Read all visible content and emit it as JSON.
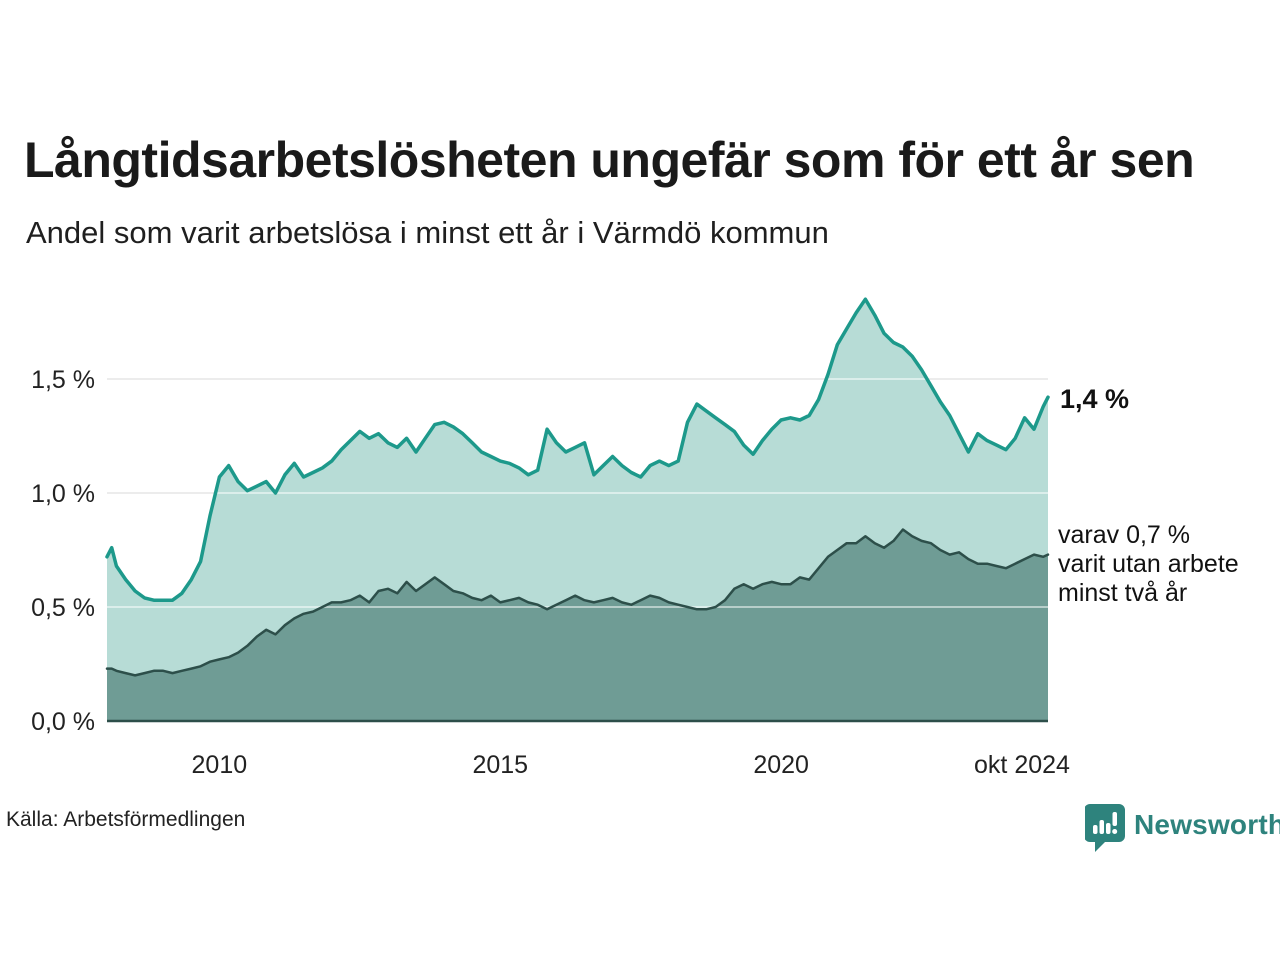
{
  "colors": {
    "accent_line": "#1d998b",
    "accent_fill": "#b7dcd6",
    "dark_line": "#2d4f4a",
    "dark_fill": "#6f9c95",
    "grid": "#d9d9d9",
    "grid_over_fill": "rgba(255,255,255,0.5)",
    "axis_text": "#222222",
    "logo_teal": "#2e837d"
  },
  "logo": {
    "text": "Newsworthy",
    "icon": "bar-chart-speech-bubble"
  },
  "chart_data": {
    "type": "area",
    "title": "Långtidsarbetslösheten ungefär som för ett år sen",
    "subtitle": "Andel som varit arbetslösa i minst ett år i Värmdö kommun",
    "source": "Källa: Arbetsförmedlingen",
    "unit": "%",
    "grid": true,
    "legend_position": "none",
    "ylim": [
      0,
      1.9
    ],
    "y_ticks": [
      {
        "label": "0,0 %",
        "value": 0.0
      },
      {
        "label": "0,5 %",
        "value": 0.5
      },
      {
        "label": "1,0 %",
        "value": 1.0
      },
      {
        "label": "1,5 %",
        "value": 1.5
      }
    ],
    "x_ticks": [
      {
        "label": "2010",
        "date": "2010-01"
      },
      {
        "label": "2015",
        "date": "2015-01"
      },
      {
        "label": "2020",
        "date": "2020-01"
      },
      {
        "label": "okt 2024",
        "date": "2024-10"
      }
    ],
    "annotations": {
      "latest_total": "1,4 %",
      "latest_two_year": [
        "varav 0,7 %",
        "varit utan arbete",
        "minst två år"
      ]
    },
    "x": [
      "2008-01",
      "2008-02",
      "2008-03",
      "2008-05",
      "2008-07",
      "2008-09",
      "2008-11",
      "2009-01",
      "2009-03",
      "2009-05",
      "2009-07",
      "2009-09",
      "2009-11",
      "2010-01",
      "2010-03",
      "2010-05",
      "2010-07",
      "2010-09",
      "2010-11",
      "2011-01",
      "2011-03",
      "2011-05",
      "2011-07",
      "2011-09",
      "2011-11",
      "2012-01",
      "2012-03",
      "2012-05",
      "2012-07",
      "2012-09",
      "2012-11",
      "2013-01",
      "2013-03",
      "2013-05",
      "2013-07",
      "2013-09",
      "2013-11",
      "2014-01",
      "2014-03",
      "2014-05",
      "2014-07",
      "2014-09",
      "2014-11",
      "2015-01",
      "2015-03",
      "2015-05",
      "2015-07",
      "2015-09",
      "2015-11",
      "2016-01",
      "2016-03",
      "2016-05",
      "2016-07",
      "2016-09",
      "2016-11",
      "2017-01",
      "2017-03",
      "2017-05",
      "2017-07",
      "2017-09",
      "2017-11",
      "2018-01",
      "2018-03",
      "2018-05",
      "2018-07",
      "2018-09",
      "2018-11",
      "2019-01",
      "2019-03",
      "2019-05",
      "2019-07",
      "2019-09",
      "2019-11",
      "2020-01",
      "2020-03",
      "2020-05",
      "2020-07",
      "2020-09",
      "2020-11",
      "2021-01",
      "2021-03",
      "2021-05",
      "2021-07",
      "2021-09",
      "2021-11",
      "2022-01",
      "2022-03",
      "2022-05",
      "2022-07",
      "2022-09",
      "2022-11",
      "2023-01",
      "2023-03",
      "2023-05",
      "2023-07",
      "2023-09",
      "2023-11",
      "2024-01",
      "2024-03",
      "2024-05",
      "2024-07",
      "2024-09",
      "2024-10"
    ],
    "series": [
      {
        "name": "Andel som varit arbetslösa minst ett år",
        "values": [
          0.72,
          0.76,
          0.68,
          0.62,
          0.57,
          0.54,
          0.53,
          0.53,
          0.53,
          0.56,
          0.62,
          0.7,
          0.9,
          1.07,
          1.12,
          1.05,
          1.01,
          1.03,
          1.05,
          1.0,
          1.08,
          1.13,
          1.07,
          1.09,
          1.11,
          1.14,
          1.19,
          1.23,
          1.27,
          1.24,
          1.26,
          1.22,
          1.2,
          1.24,
          1.18,
          1.24,
          1.3,
          1.31,
          1.29,
          1.26,
          1.22,
          1.18,
          1.16,
          1.14,
          1.13,
          1.11,
          1.08,
          1.1,
          1.28,
          1.22,
          1.18,
          1.2,
          1.22,
          1.08,
          1.12,
          1.16,
          1.12,
          1.09,
          1.07,
          1.12,
          1.14,
          1.12,
          1.14,
          1.31,
          1.39,
          1.36,
          1.33,
          1.3,
          1.27,
          1.21,
          1.17,
          1.23,
          1.28,
          1.32,
          1.33,
          1.32,
          1.34,
          1.41,
          1.52,
          1.65,
          1.72,
          1.79,
          1.85,
          1.78,
          1.7,
          1.66,
          1.64,
          1.6,
          1.54,
          1.47,
          1.4,
          1.34,
          1.26,
          1.18,
          1.26,
          1.23,
          1.21,
          1.19,
          1.24,
          1.33,
          1.28,
          1.38,
          1.42
        ]
      },
      {
        "name": "varav utan arbete minst två år",
        "values": [
          0.23,
          0.23,
          0.22,
          0.21,
          0.2,
          0.21,
          0.22,
          0.22,
          0.21,
          0.22,
          0.23,
          0.24,
          0.26,
          0.27,
          0.28,
          0.3,
          0.33,
          0.37,
          0.4,
          0.38,
          0.42,
          0.45,
          0.47,
          0.48,
          0.5,
          0.52,
          0.52,
          0.53,
          0.55,
          0.52,
          0.57,
          0.58,
          0.56,
          0.61,
          0.57,
          0.6,
          0.63,
          0.6,
          0.57,
          0.56,
          0.54,
          0.53,
          0.55,
          0.52,
          0.53,
          0.54,
          0.52,
          0.51,
          0.49,
          0.51,
          0.53,
          0.55,
          0.53,
          0.52,
          0.53,
          0.54,
          0.52,
          0.51,
          0.53,
          0.55,
          0.54,
          0.52,
          0.51,
          0.5,
          0.49,
          0.49,
          0.5,
          0.53,
          0.58,
          0.6,
          0.58,
          0.6,
          0.61,
          0.6,
          0.6,
          0.63,
          0.62,
          0.67,
          0.72,
          0.75,
          0.78,
          0.78,
          0.81,
          0.78,
          0.76,
          0.79,
          0.84,
          0.81,
          0.79,
          0.78,
          0.75,
          0.73,
          0.74,
          0.71,
          0.69,
          0.69,
          0.68,
          0.67,
          0.69,
          0.71,
          0.73,
          0.72,
          0.73
        ]
      }
    ]
  }
}
